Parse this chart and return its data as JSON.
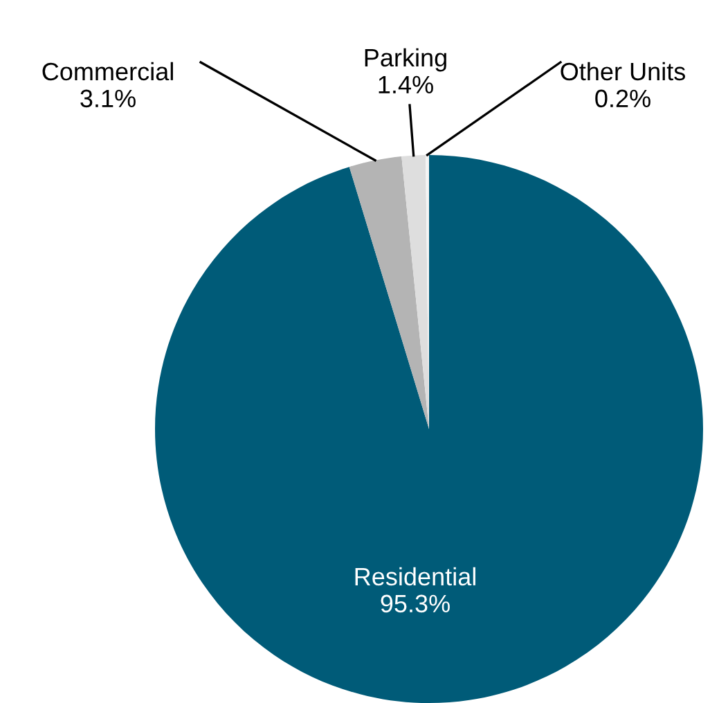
{
  "chart_data": {
    "type": "pie",
    "categories": [
      "Residential",
      "Commercial",
      "Parking",
      "Other Units"
    ],
    "values": [
      95.3,
      3.1,
      1.4,
      0.2
    ],
    "value_labels": [
      "95.3%",
      "3.1%",
      "1.4%",
      "0.2%"
    ],
    "colors": [
      "#005b78",
      "#b4b4b4",
      "#dedede",
      "#f4f4f4"
    ],
    "legend": false
  }
}
